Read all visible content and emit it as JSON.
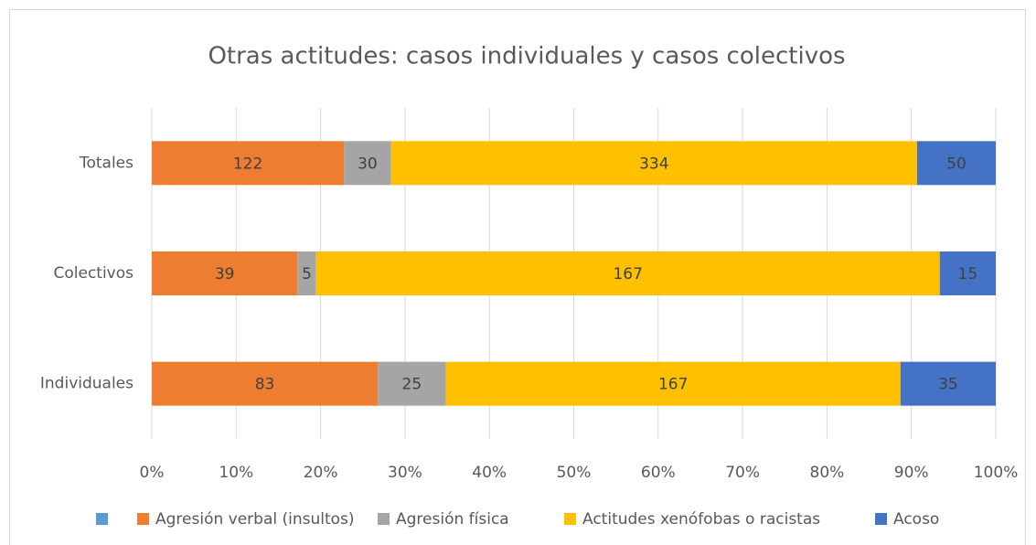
{
  "chart_data": {
    "type": "bar",
    "orientation": "horizontal",
    "stacking": "percent",
    "title": "Otras actitudes: casos individuales y casos colectivos",
    "categories": [
      "Totales",
      "Colectivos",
      "Individuales"
    ],
    "series": [
      {
        "name": "Agresión verbal (insultos)",
        "color": "#ed7d31",
        "values": [
          122,
          39,
          83
        ]
      },
      {
        "name": "Agresión física",
        "color": "#a5a5a5",
        "values": [
          30,
          5,
          25
        ]
      },
      {
        "name": "Actitudes xenófobas o racistas",
        "color": "#ffc000",
        "values": [
          334,
          167,
          167
        ]
      },
      {
        "name": "Acoso",
        "color": "#4472c4",
        "values": [
          50,
          15,
          35
        ]
      }
    ],
    "xlim": [
      0,
      100
    ],
    "xticks": [
      {
        "value": 0,
        "label": "0%"
      },
      {
        "value": 10,
        "label": "10%"
      },
      {
        "value": 20,
        "label": "20%"
      },
      {
        "value": 30,
        "label": "30%"
      },
      {
        "value": 40,
        "label": "40%"
      },
      {
        "value": 50,
        "label": "50%"
      },
      {
        "value": 60,
        "label": "60%"
      },
      {
        "value": 70,
        "label": "70%"
      },
      {
        "value": 80,
        "label": "80%"
      },
      {
        "value": 90,
        "label": "90%"
      },
      {
        "value": 100,
        "label": "100%"
      }
    ],
    "grid": true,
    "legend": "bottom"
  }
}
